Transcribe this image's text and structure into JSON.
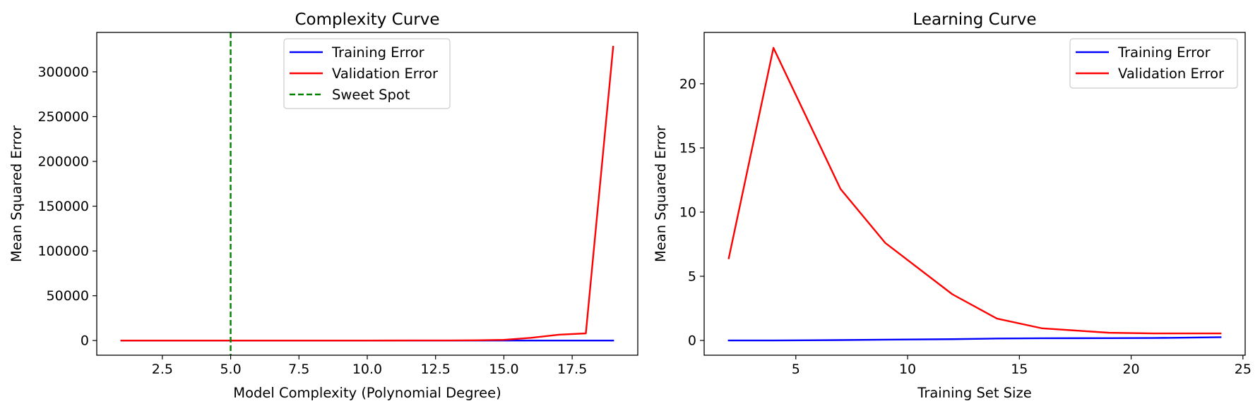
{
  "chart_data": [
    {
      "type": "line",
      "title": "Complexity Curve",
      "xlabel": "Model Complexity (Polynomial Degree)",
      "ylabel": "Mean Squared Error",
      "xlim": [
        0.1,
        19.9
      ],
      "ylim": [
        -16400,
        344000
      ],
      "xticks": [
        2.5,
        5.0,
        7.5,
        10.0,
        12.5,
        15.0,
        17.5
      ],
      "xtick_labels": [
        "2.5",
        "5.0",
        "7.5",
        "10.0",
        "12.5",
        "15.0",
        "17.5"
      ],
      "yticks": [
        0,
        50000,
        100000,
        150000,
        200000,
        250000,
        300000
      ],
      "ytick_labels": [
        "0",
        "50000",
        "100000",
        "150000",
        "200000",
        "250000",
        "300000"
      ],
      "grid": false,
      "legend_position": "upper center",
      "x": [
        1,
        2,
        3,
        4,
        5,
        6,
        7,
        8,
        9,
        10,
        11,
        12,
        13,
        14,
        15,
        16,
        17,
        18,
        19
      ],
      "series": [
        {
          "name": "Training Error",
          "color": "#0000ff",
          "style": "solid",
          "values": [
            5,
            4,
            3,
            2,
            2,
            2,
            2,
            2,
            2,
            2,
            2,
            2,
            2,
            2,
            2,
            2,
            2,
            2,
            2
          ]
        },
        {
          "name": "Validation Error",
          "color": "#ff0000",
          "style": "solid",
          "values": [
            8,
            6,
            5,
            4,
            4,
            4,
            5,
            6,
            8,
            12,
            20,
            40,
            100,
            300,
            800,
            3000,
            6500,
            8000,
            328000
          ]
        }
      ],
      "vlines": [
        {
          "name": "Sweet Spot",
          "x": 5,
          "color": "#008000",
          "style": "dashed"
        }
      ]
    },
    {
      "type": "line",
      "title": "Learning Curve",
      "xlabel": "Training Set Size",
      "ylabel": "Mean Squared Error",
      "xlim": [
        0.9,
        25.1
      ],
      "ylim": [
        -1.15,
        24.0
      ],
      "xticks": [
        5,
        10,
        15,
        20,
        25
      ],
      "xtick_labels": [
        "5",
        "10",
        "15",
        "20",
        "25"
      ],
      "yticks": [
        0,
        5,
        10,
        15,
        20
      ],
      "ytick_labels": [
        "0",
        "5",
        "10",
        "15",
        "20"
      ],
      "grid": false,
      "legend_position": "upper right",
      "x": [
        2,
        4,
        7,
        9,
        12,
        14,
        16,
        19,
        21,
        24
      ],
      "series": [
        {
          "name": "Training Error",
          "color": "#0000ff",
          "style": "solid",
          "values": [
            0.0,
            0.0,
            0.03,
            0.06,
            0.1,
            0.15,
            0.17,
            0.18,
            0.19,
            0.25
          ]
        },
        {
          "name": "Validation Error",
          "color": "#ff0000",
          "style": "solid",
          "values": [
            6.4,
            22.8,
            11.8,
            7.6,
            3.6,
            1.7,
            0.95,
            0.6,
            0.55,
            0.55
          ]
        }
      ]
    }
  ]
}
